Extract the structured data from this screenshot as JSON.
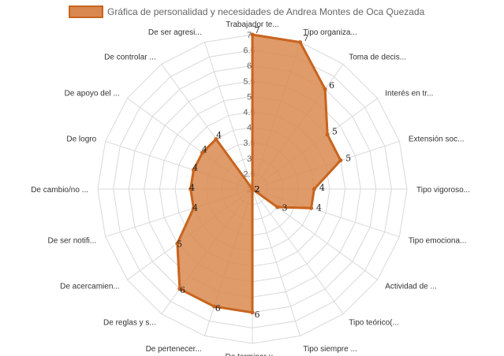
{
  "chart_data": {
    "type": "radar",
    "title": "",
    "legend": {
      "position": "top",
      "label": "Gráfica de personalidad y necesidades de Andrea Montes de Oca Quezada"
    },
    "colors": {
      "fill": "#d9894f",
      "fill_opacity": 0.85,
      "stroke": "#c8641e",
      "grid": "#d9d9d9",
      "legend_box": "#d9894f"
    },
    "r_axis": {
      "min": 2,
      "max": 7,
      "ticks": [
        "2",
        "2.5",
        "3",
        "3.5",
        "4",
        "4.5",
        "5",
        "5.5",
        "6",
        "6.5",
        "7"
      ]
    },
    "categories": [
      "Trabajador te...",
      "Tipo organiza...",
      "Toma de decis...",
      "Interés en tr...",
      "Extensión soc...",
      "Tipo vigoroso...",
      "Tipo emociona...",
      "Actividad de ...",
      "Tipo teórico(...",
      "Tipo siempre ...",
      "De terminar u...",
      "De pertenecer...",
      "De reglas y s...",
      "De acercamien...",
      "De ser notifi...",
      "De cambio/no ...",
      "De logro",
      "De apoyo del ...",
      "De controlar ...",
      "De ser agresi..."
    ],
    "series": [
      {
        "name": "Gráfica de personalidad y necesidades de Andrea Montes de Oca Quezada",
        "values": [
          7,
          7,
          6,
          5,
          5,
          4,
          4,
          3,
          2,
          2,
          6,
          6,
          6,
          5,
          4,
          4,
          4,
          4,
          4,
          2
        ]
      }
    ]
  }
}
